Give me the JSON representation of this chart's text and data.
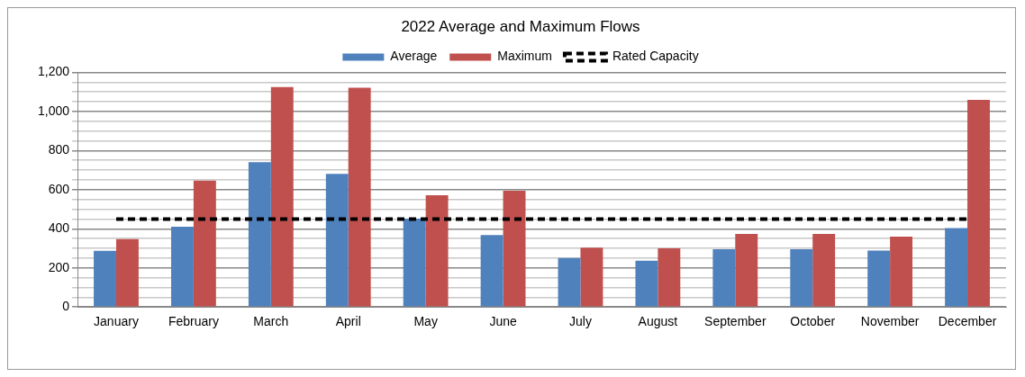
{
  "chart_data": {
    "type": "bar",
    "title": "2022 Average and Maximum Flows",
    "categories": [
      "January",
      "February",
      "March",
      "April",
      "May",
      "June",
      "July",
      "August",
      "September",
      "October",
      "November",
      "December"
    ],
    "series": [
      {
        "name": "Average",
        "color": "#4f81bd",
        "values": [
          287,
          411,
          741,
          681,
          452,
          368,
          251,
          237,
          295,
          295,
          289,
          403
        ]
      },
      {
        "name": "Maximum",
        "color": "#c0504d",
        "values": [
          347,
          646,
          1125,
          1121,
          572,
          595,
          304,
          300,
          374,
          374,
          360,
          1059
        ]
      },
      {
        "name": "Rated Capacity",
        "type": "line",
        "color": "#000000",
        "line_style": "dashed",
        "marker": "none",
        "values": [
          450,
          450,
          450,
          450,
          450,
          450,
          450,
          450,
          450,
          450,
          450,
          450
        ]
      }
    ],
    "ylim": [
      0,
      1200
    ],
    "yticks": [
      0,
      {
        "value": 50,
        "label": null
      },
      {
        "value": 100,
        "label": null
      },
      {
        "value": 150,
        "label": null
      },
      {
        "value": 200,
        "label": "200"
      },
      {
        "value": 250,
        "label": null
      },
      {
        "value": 300,
        "label": null
      },
      {
        "value": 350,
        "label": null
      },
      {
        "value": 400,
        "label": "400"
      },
      {
        "value": 450,
        "label": null
      },
      {
        "value": 500,
        "label": null
      },
      {
        "value": 550,
        "label": null
      },
      {
        "value": 600,
        "label": "600"
      },
      {
        "value": 650,
        "label": null
      },
      {
        "value": 700,
        "label": null
      },
      {
        "value": 750,
        "label": null
      },
      {
        "value": 800,
        "label": "800"
      },
      {
        "value": 850,
        "label": null
      },
      {
        "value": 900,
        "label": null
      },
      {
        "value": 950,
        "label": null
      },
      {
        "value": 1000,
        "label": "1,000"
      },
      {
        "value": 1050,
        "label": null
      },
      {
        "value": 1100,
        "label": null
      },
      {
        "value": 1150,
        "label": null
      },
      {
        "value": 1200,
        "label": "1,200"
      }
    ],
    "grid": "y",
    "legend": "top"
  }
}
